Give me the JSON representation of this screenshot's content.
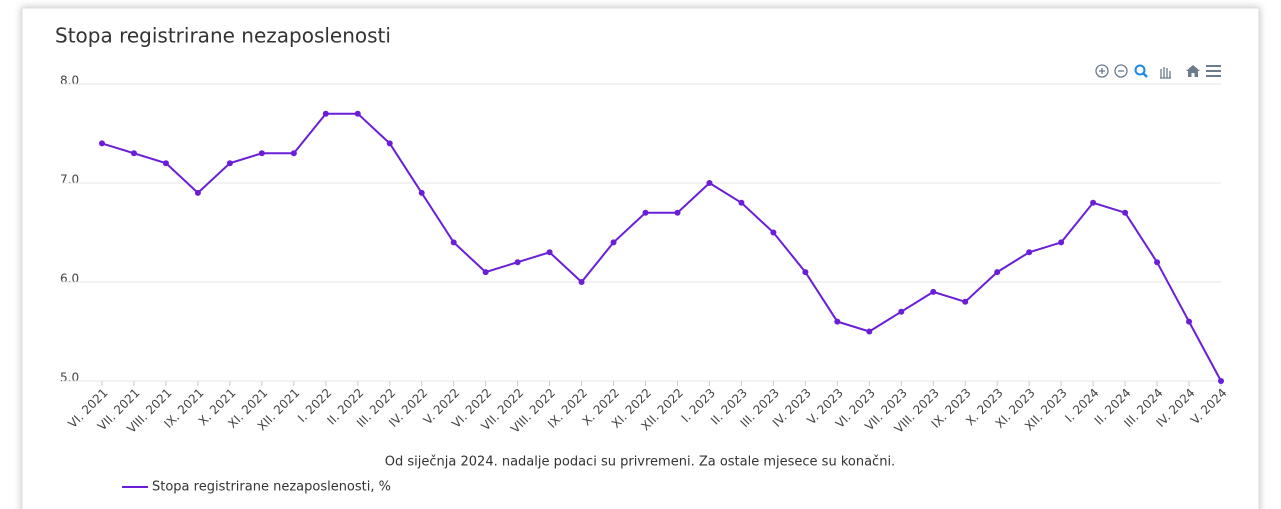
{
  "chart_data": {
    "type": "line",
    "title": "Stopa registrirane nezaposlenosti",
    "note": "Od siječnja 2024. nadalje podaci su privremeni. Za ostale mjesece su konačni.",
    "categories": [
      "VI. 2021",
      "VII. 2021",
      "VIII. 2021",
      "IX. 2021",
      "X. 2021",
      "XI. 2021",
      "XII. 2021",
      "I. 2022",
      "II. 2022",
      "III. 2022",
      "IV. 2022",
      "V. 2022",
      "VI. 2022",
      "VII. 2022",
      "VIII. 2022",
      "IX. 2022",
      "X. 2022",
      "XI. 2022",
      "XII. 2022",
      "I. 2023",
      "II. 2023",
      "III. 2023",
      "IV. 2023",
      "V. 2023",
      "VI. 2023",
      "VII. 2023",
      "VIII. 2023",
      "IX. 2023",
      "X. 2023",
      "XI. 2023",
      "XII. 2023",
      "I. 2024",
      "II. 2024",
      "III. 2024",
      "IV. 2024",
      "V. 2024"
    ],
    "series": [
      {
        "name": "Stopa registrirane nezaposlenosti, %",
        "color": "#6a1fd6",
        "values": [
          7.4,
          7.3,
          7.2,
          6.9,
          7.2,
          7.3,
          7.3,
          7.7,
          7.7,
          7.4,
          6.9,
          6.4,
          6.1,
          6.2,
          6.3,
          6.0,
          6.4,
          6.7,
          6.7,
          7.0,
          6.8,
          6.5,
          6.1,
          5.6,
          5.5,
          5.7,
          5.9,
          5.8,
          6.1,
          6.3,
          6.4,
          6.8,
          6.7,
          6.2,
          5.6,
          5.0
        ]
      }
    ],
    "ylim": [
      5,
      8
    ],
    "yticks": [
      {
        "value": 5,
        "label": "5.0"
      },
      {
        "value": 6,
        "label": "6.0"
      },
      {
        "value": 7,
        "label": "7.0"
      },
      {
        "value": 8,
        "label": "8.0"
      }
    ],
    "grid": true
  }
}
